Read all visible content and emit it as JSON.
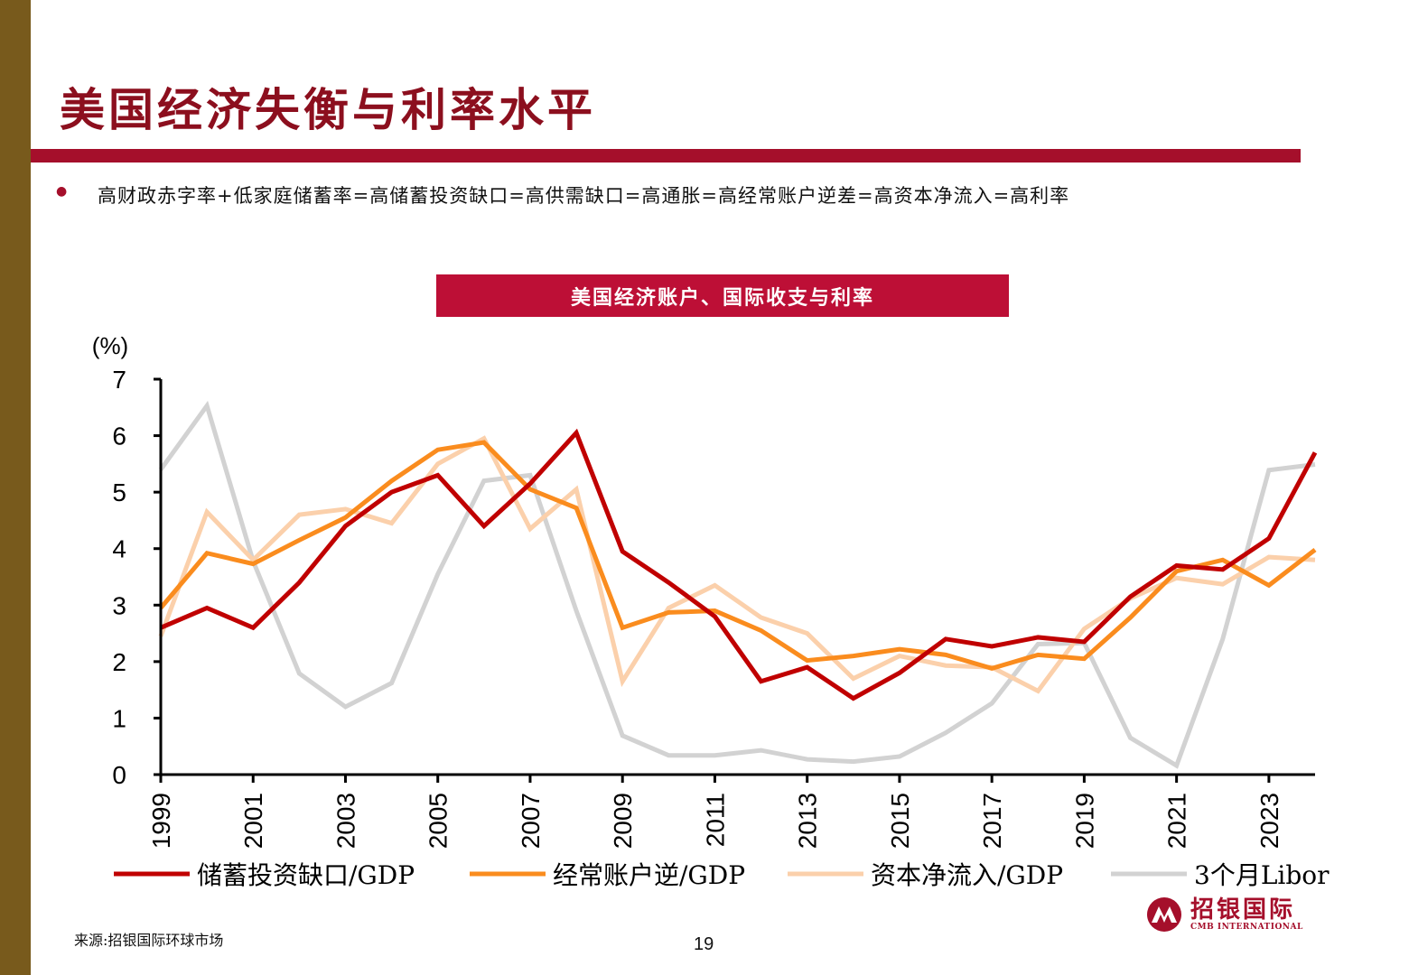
{
  "header": {
    "title": "美国经济失衡与利率水平",
    "bullet": "高财政赤字率+低家庭储蓄率=高储蓄投资缺口=高供需缺口=高通胀=高经常账户逆差=高资本净流入=高利率"
  },
  "colors": {
    "sidebar": "#785a1c",
    "accent": "#a50f2b",
    "chart_title_bg": "#bd0f36"
  },
  "chart_data": {
    "type": "line",
    "title": "美国经济账户、国际收支与利率",
    "ylabel": "(%)",
    "ylim": [
      0,
      7
    ],
    "yticks": [
      "0",
      "1",
      "2",
      "3",
      "4",
      "5",
      "6",
      "7"
    ],
    "xlim": [
      1999,
      2024
    ],
    "xticks": [
      "1999",
      "2001",
      "2003",
      "2005",
      "2007",
      "2009",
      "2011",
      "2013",
      "2015",
      "2017",
      "2019",
      "2021",
      "2023"
    ],
    "grid": false,
    "legend": "bottom",
    "x": [
      1999,
      2000,
      2001,
      2002,
      2003,
      2004,
      2005,
      2006,
      2007,
      2008,
      2009,
      2010,
      2011,
      2012,
      2013,
      2014,
      2015,
      2016,
      2017,
      2018,
      2019,
      2020,
      2021,
      2022,
      2023,
      2024
    ],
    "series": [
      {
        "name": "储蓄投资缺口/GDP",
        "color": "#c00000",
        "values": [
          2.6,
          2.95,
          2.6,
          3.4,
          4.4,
          5.0,
          5.3,
          4.4,
          5.15,
          6.05,
          3.95,
          3.4,
          2.8,
          1.65,
          1.9,
          1.35,
          1.8,
          2.4,
          2.27,
          2.43,
          2.35,
          3.15,
          3.7,
          3.63,
          4.18,
          5.7
        ]
      },
      {
        "name": "经常账户逆/GDP",
        "color": "#fa8c1e",
        "values": [
          2.95,
          3.92,
          3.73,
          4.15,
          4.55,
          5.2,
          5.75,
          5.88,
          5.05,
          4.72,
          2.6,
          2.87,
          2.9,
          2.55,
          2.02,
          2.1,
          2.22,
          2.12,
          1.88,
          2.12,
          2.05,
          2.78,
          3.6,
          3.8,
          3.35,
          3.98
        ]
      },
      {
        "name": "资本净流入/GDP",
        "color": "#fbd0ab",
        "values": [
          2.45,
          4.65,
          3.8,
          4.6,
          4.7,
          4.45,
          5.5,
          5.95,
          4.35,
          5.05,
          1.65,
          2.95,
          3.35,
          2.78,
          2.5,
          1.7,
          2.1,
          1.93,
          1.9,
          1.48,
          2.58,
          3.12,
          3.48,
          3.37,
          3.85,
          3.8
        ]
      },
      {
        "name": "3个月Libor",
        "color": "#d2d2d2",
        "values": [
          5.4,
          6.53,
          3.78,
          1.79,
          1.2,
          1.62,
          3.55,
          5.2,
          5.3,
          2.9,
          0.69,
          0.34,
          0.34,
          0.43,
          0.27,
          0.23,
          0.32,
          0.74,
          1.26,
          2.31,
          2.33,
          0.65,
          0.16,
          2.4,
          5.39,
          5.49
        ]
      }
    ]
  },
  "footer": {
    "source": "来源:招银国际环球市场",
    "page": "19",
    "logo_cn": "招银国际",
    "logo_en": "CMB INTERNATIONAL"
  }
}
